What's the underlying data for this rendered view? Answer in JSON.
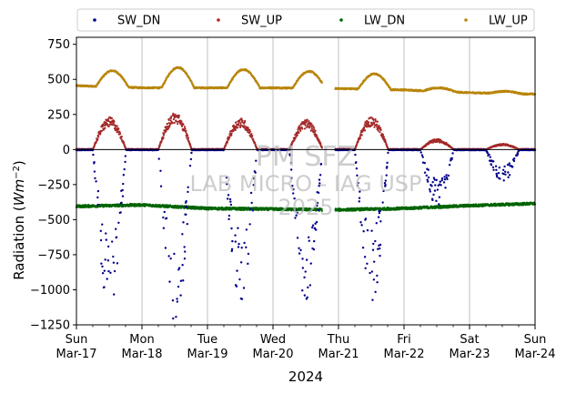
{
  "chart_data": {
    "type": "scatter",
    "xlabel": "2024",
    "ylabel": "Radiation (Wm^-2)",
    "ylim": [
      -1250,
      800
    ],
    "xlim": [
      0,
      7
    ],
    "grid": "vertical-x-only",
    "legend_placement": "top-center-outside",
    "y_ticks": [
      "750",
      "500",
      "250",
      "0",
      "−250",
      "−500",
      "−750",
      "−1000",
      "−1250"
    ],
    "y_tick_values": [
      750,
      500,
      250,
      0,
      -250,
      -500,
      -750,
      -1000,
      -1250
    ],
    "x_ticks": [
      {
        "day": "Sun",
        "date": "Mar-17",
        "x": 0
      },
      {
        "day": "Mon",
        "date": "Mar-18",
        "x": 1
      },
      {
        "day": "Tue",
        "date": "Mar-19",
        "x": 2
      },
      {
        "day": "Wed",
        "date": "Mar-20",
        "x": 3
      },
      {
        "day": "Thu",
        "date": "Mar-21",
        "x": 4
      },
      {
        "day": "Fri",
        "date": "Mar-22",
        "x": 5
      },
      {
        "day": "Sat",
        "date": "Mar-23",
        "x": 6
      },
      {
        "day": "Sun",
        "date": "Mar-24",
        "x": 7
      }
    ],
    "watermark": [
      "PM SFZ",
      "LAB MICRO - IAG USP",
      "2025"
    ],
    "series": [
      {
        "name": "SW_DN",
        "color": "#00008b",
        "daily_min": [
          -1100,
          -1250,
          -1030,
          -1020,
          -1050,
          -380,
          -220,
          0
        ],
        "daily_min_x": [
          0.54,
          1.46,
          2.5,
          3.47,
          4.51,
          5.54,
          6.49,
          7.0
        ]
      },
      {
        "name": "SW_UP",
        "color": "#a52a2a",
        "daily_peak": [
          200,
          230,
          195,
          185,
          205,
          65,
          35,
          0
        ],
        "daily_peak_x": [
          0.52,
          1.5,
          2.48,
          3.45,
          4.48,
          5.55,
          6.5,
          7.0
        ]
      },
      {
        "name": "LW_DN",
        "color": "#006400",
        "base": [
          -405,
          -395,
          -420,
          -425,
          -430,
          -420,
          -400,
          -385
        ]
      },
      {
        "name": "LW_UP",
        "color": "#b8860b",
        "base": [
          455,
          440,
          440,
          440,
          435,
          425,
          405,
          395
        ],
        "daily_peak": [
          570,
          585,
          570,
          560,
          545,
          450,
          420,
          400
        ]
      }
    ],
    "data_gap": [
      3.75,
      3.95
    ]
  }
}
